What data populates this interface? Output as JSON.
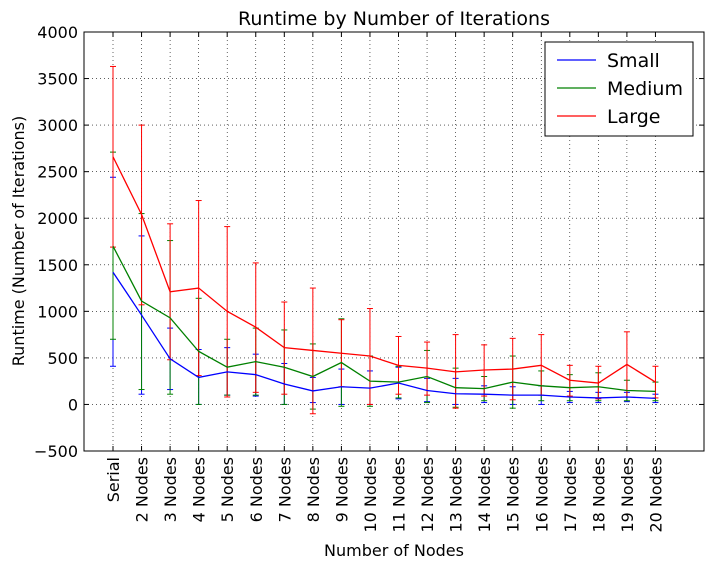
{
  "chart_data": {
    "type": "line",
    "title": "Runtime by Number of Iterations",
    "xlabel": "Number of Nodes",
    "ylabel": "Runtime (Number of Iterations)",
    "categories": [
      "Serial",
      "2 Nodes",
      "3 Nodes",
      "4 Nodes",
      "5 Nodes",
      "6 Nodes",
      "7 Nodes",
      "8 Nodes",
      "9 Nodes",
      "10 Nodes",
      "11 Nodes",
      "12 Nodes",
      "13 Nodes",
      "14 Nodes",
      "15 Nodes",
      "16 Nodes",
      "17 Nodes",
      "18 Nodes",
      "19 Nodes",
      "20 Nodes"
    ],
    "ylim": [
      -500,
      4000
    ],
    "yticks": [
      -500,
      0,
      500,
      1000,
      1500,
      2000,
      2500,
      3000,
      3500,
      4000
    ],
    "grid": true,
    "legend_position": "top-right",
    "series": [
      {
        "name": "Small",
        "color": "#0000ff",
        "values": [
          1420,
          960,
          490,
          290,
          350,
          320,
          220,
          145,
          190,
          175,
          230,
          150,
          115,
          110,
          100,
          100,
          80,
          70,
          80,
          65
        ],
        "err_low": [
          410,
          110,
          160,
          0,
          100,
          90,
          0,
          20,
          0,
          0,
          60,
          30,
          0,
          20,
          0,
          0,
          20,
          20,
          30,
          20
        ],
        "err_high": [
          2440,
          1810,
          820,
          590,
          610,
          540,
          440,
          290,
          380,
          360,
          400,
          280,
          280,
          200,
          190,
          200,
          140,
          130,
          130,
          110
        ]
      },
      {
        "name": "Medium",
        "color": "#008000",
        "values": [
          1700,
          1110,
          930,
          570,
          400,
          460,
          400,
          300,
          450,
          250,
          240,
          300,
          180,
          170,
          240,
          200,
          180,
          190,
          150,
          140
        ],
        "err_low": [
          700,
          160,
          110,
          0,
          100,
          100,
          0,
          -50,
          -20,
          -20,
          70,
          20,
          -30,
          40,
          -40,
          40,
          40,
          40,
          40,
          40
        ],
        "err_high": [
          2710,
          2050,
          1760,
          1140,
          700,
          820,
          800,
          650,
          920,
          520,
          410,
          580,
          390,
          300,
          520,
          360,
          320,
          340,
          260,
          240
        ]
      },
      {
        "name": "Large",
        "color": "#ff0000",
        "values": [
          2660,
          2040,
          1210,
          1250,
          1000,
          830,
          610,
          580,
          550,
          520,
          420,
          390,
          350,
          370,
          380,
          420,
          260,
          230,
          430,
          240
        ],
        "err_low": [
          1690,
          1070,
          480,
          310,
          80,
          130,
          110,
          -100,
          190,
          0,
          110,
          100,
          -40,
          90,
          50,
          100,
          90,
          60,
          80,
          70
        ],
        "err_high": [
          3630,
          3000,
          1940,
          2190,
          1910,
          1520,
          1100,
          1250,
          910,
          1030,
          730,
          670,
          750,
          640,
          710,
          750,
          420,
          410,
          780,
          410
        ]
      }
    ]
  }
}
